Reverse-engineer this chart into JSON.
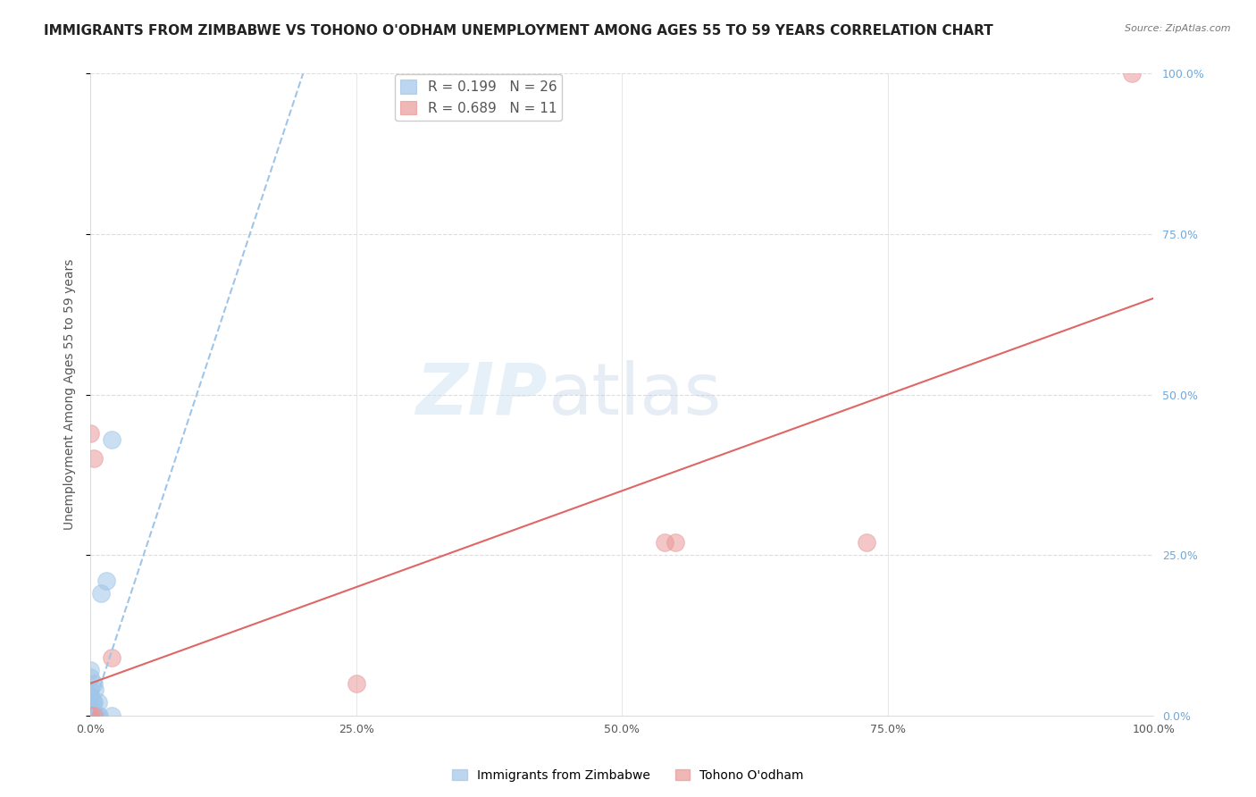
{
  "title": "IMMIGRANTS FROM ZIMBABWE VS TOHONO O'ODHAM UNEMPLOYMENT AMONG AGES 55 TO 59 YEARS CORRELATION CHART",
  "source": "Source: ZipAtlas.com",
  "ylabel": "Unemployment Among Ages 55 to 59 years",
  "xlim": [
    0,
    1.0
  ],
  "ylim": [
    0,
    1.0
  ],
  "xticks": [
    0.0,
    0.25,
    0.5,
    0.75,
    1.0
  ],
  "yticks": [
    0.0,
    0.25,
    0.5,
    0.75,
    1.0
  ],
  "xticklabels": [
    "0.0%",
    "25.0%",
    "50.0%",
    "75.0%",
    "100.0%"
  ],
  "right_yticklabels": [
    "0.0%",
    "25.0%",
    "50.0%",
    "75.0%",
    "100.0%"
  ],
  "series": [
    {
      "name": "Immigrants from Zimbabwe",
      "color": "#9fc5e8",
      "R": 0.199,
      "N": 26,
      "line_style": "--",
      "line_color": "#9fc5e8",
      "points_x": [
        0.0,
        0.0,
        0.0,
        0.0,
        0.0,
        0.0,
        0.0,
        0.0,
        0.0,
        0.0,
        0.0,
        0.002,
        0.002,
        0.003,
        0.003,
        0.003,
        0.004,
        0.004,
        0.005,
        0.007,
        0.007,
        0.008,
        0.01,
        0.015,
        0.02,
        0.02
      ],
      "points_y": [
        0.0,
        0.0,
        0.0,
        0.0,
        0.0,
        0.01,
        0.02,
        0.03,
        0.04,
        0.06,
        0.07,
        0.0,
        0.02,
        0.0,
        0.02,
        0.05,
        0.0,
        0.04,
        0.0,
        0.0,
        0.02,
        0.0,
        0.19,
        0.21,
        0.0,
        0.43
      ],
      "trendline_x": [
        0.0,
        0.2
      ],
      "trendline_y": [
        0.0,
        1.0
      ]
    },
    {
      "name": "Tohono O'odham",
      "color": "#ea9999",
      "R": 0.689,
      "N": 11,
      "line_style": "-",
      "line_color": "#e06666",
      "points_x": [
        0.0,
        0.0,
        0.0,
        0.003,
        0.003,
        0.02,
        0.25,
        0.54,
        0.55,
        0.73,
        0.98
      ],
      "points_y": [
        0.0,
        0.0,
        0.44,
        0.0,
        0.4,
        0.09,
        0.05,
        0.27,
        0.27,
        0.27,
        1.0
      ],
      "trendline_x": [
        0.0,
        1.0
      ],
      "trendline_y": [
        0.05,
        0.65
      ]
    }
  ],
  "watermark_zip": "ZIP",
  "watermark_atlas": "atlas",
  "background_color": "#ffffff",
  "grid_color": "#dddddd",
  "title_fontsize": 11,
  "axis_fontsize": 10,
  "tick_fontsize": 9,
  "marker_size": 200
}
